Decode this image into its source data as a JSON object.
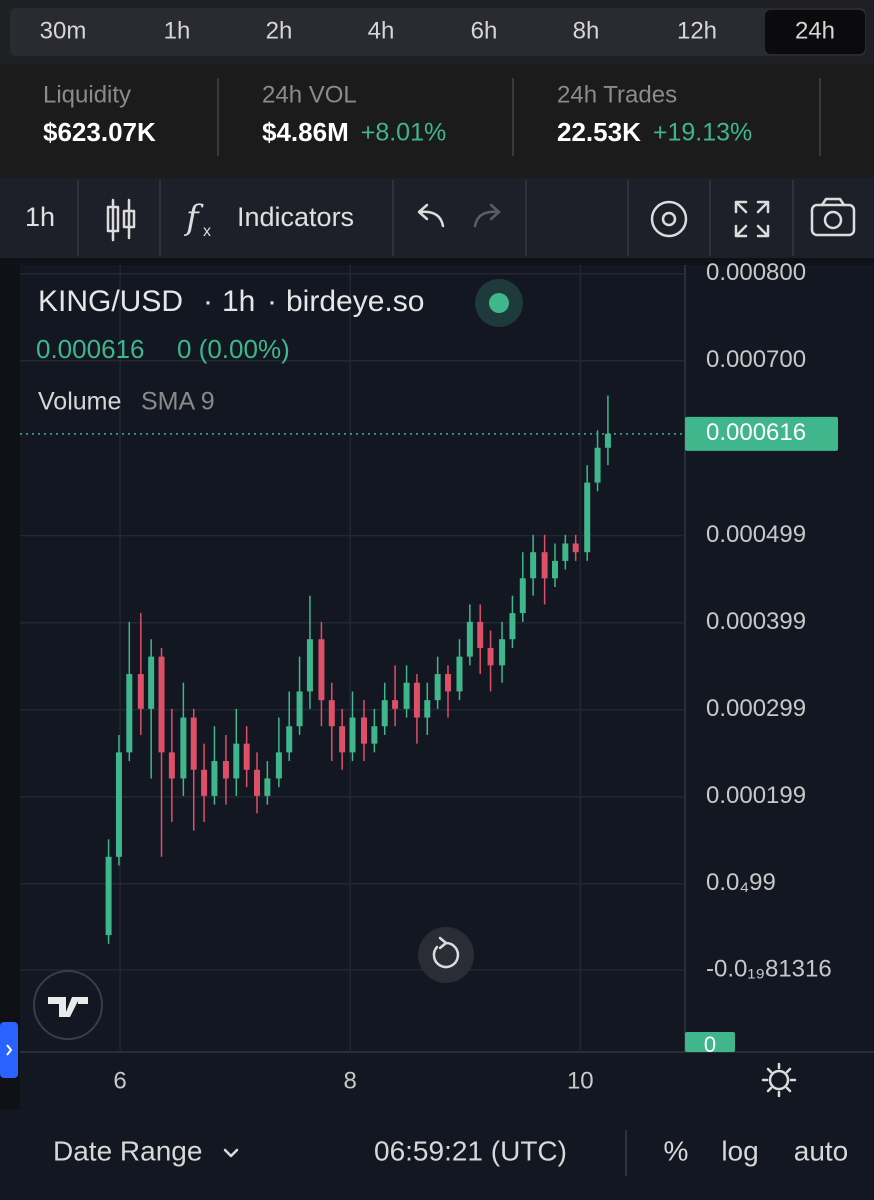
{
  "timeframes": [
    "30m",
    "1h",
    "2h",
    "4h",
    "6h",
    "8h",
    "12h",
    "24h"
  ],
  "active_timeframe": "24h",
  "stats": [
    {
      "label": "Liquidity",
      "value": "$623.07K"
    },
    {
      "label": "24h VOL",
      "value": "$4.86M",
      "change": "+8.01%"
    },
    {
      "label": "24h Trades",
      "value": "22.53K",
      "change": "+19.13%"
    }
  ],
  "toolbar": {
    "interval": "1h",
    "indicators": "Indicators"
  },
  "chart_data": {
    "type": "candlestick",
    "symbol": "KING/USD",
    "interval": "1h",
    "source": "birdeye.so",
    "last_price": 0.000616,
    "change": "0 (0.00%)",
    "indicator": "Volume",
    "indicator_params": "SMA 9",
    "up_color": "#3fb68b",
    "down_color": "#dc5068",
    "grid": true,
    "x": [
      5.9,
      5.99,
      6.08,
      6.18,
      6.27,
      6.36,
      6.45,
      6.55,
      6.64,
      6.73,
      6.82,
      6.92,
      7.01,
      7.1,
      7.19,
      7.28,
      7.38,
      7.47,
      7.56,
      7.65,
      7.75,
      7.84,
      7.93,
      8.02,
      8.12,
      8.21,
      8.3,
      8.39,
      8.49,
      8.58,
      8.67,
      8.76,
      8.85,
      8.95,
      9.04,
      9.13,
      9.22,
      9.32,
      9.41,
      9.5,
      9.59,
      9.69,
      9.78,
      9.87,
      9.96,
      10.06,
      10.15,
      10.24
    ],
    "open": [
      4e-05,
      0.00013,
      0.00025,
      0.00034,
      0.0003,
      0.00036,
      0.00025,
      0.00022,
      0.00029,
      0.00023,
      0.0002,
      0.00024,
      0.00022,
      0.00026,
      0.00023,
      0.0002,
      0.00022,
      0.00025,
      0.00028,
      0.00032,
      0.00038,
      0.00031,
      0.00028,
      0.00025,
      0.00029,
      0.00026,
      0.00028,
      0.00031,
      0.0003,
      0.00033,
      0.00029,
      0.00031,
      0.00034,
      0.00032,
      0.00036,
      0.0004,
      0.00037,
      0.00035,
      0.00038,
      0.00041,
      0.00045,
      0.00048,
      0.00045,
      0.00047,
      0.00049,
      0.00048,
      0.00056,
      0.0006
    ],
    "high": [
      0.00015,
      0.00027,
      0.0004,
      0.00041,
      0.00038,
      0.00037,
      0.0003,
      0.00033,
      0.0003,
      0.00026,
      0.00028,
      0.00027,
      0.0003,
      0.00028,
      0.00025,
      0.00024,
      0.00029,
      0.00032,
      0.00036,
      0.00043,
      0.0004,
      0.00033,
      0.0003,
      0.00032,
      0.00031,
      0.0003,
      0.00033,
      0.00035,
      0.00035,
      0.00034,
      0.00033,
      0.00036,
      0.00035,
      0.00038,
      0.00042,
      0.00042,
      0.00039,
      0.0004,
      0.00043,
      0.00048,
      0.0005,
      0.0005,
      0.00049,
      0.0005,
      0.0005,
      0.00058,
      0.00062,
      0.00066
    ],
    "low": [
      3e-05,
      0.00012,
      0.00024,
      0.00027,
      0.00022,
      0.00013,
      0.00017,
      0.0002,
      0.00016,
      0.00017,
      0.00019,
      0.00019,
      0.0002,
      0.00021,
      0.00018,
      0.00019,
      0.00021,
      0.00024,
      0.00027,
      0.0003,
      0.00028,
      0.00024,
      0.00023,
      0.00024,
      0.00024,
      0.00025,
      0.00027,
      0.00028,
      0.00029,
      0.00026,
      0.00027,
      0.0003,
      0.00029,
      0.00031,
      0.00035,
      0.00034,
      0.00032,
      0.00033,
      0.00037,
      0.0004,
      0.00043,
      0.00042,
      0.00044,
      0.00046,
      0.00047,
      0.00047,
      0.00055,
      0.00058
    ],
    "close": [
      0.00013,
      0.00025,
      0.00034,
      0.0003,
      0.00036,
      0.00025,
      0.00022,
      0.00029,
      0.00023,
      0.0002,
      0.00024,
      0.00022,
      0.00026,
      0.00023,
      0.0002,
      0.00022,
      0.00025,
      0.00028,
      0.00032,
      0.00038,
      0.00031,
      0.00028,
      0.00025,
      0.00029,
      0.00026,
      0.00028,
      0.00031,
      0.0003,
      0.00033,
      0.00029,
      0.00031,
      0.00034,
      0.00032,
      0.00036,
      0.0004,
      0.00037,
      0.00035,
      0.00038,
      0.00041,
      0.00045,
      0.00048,
      0.00045,
      0.00047,
      0.00049,
      0.00048,
      0.00056,
      0.0006,
      0.000616
    ],
    "xlim": [
      5.13,
      10.91
    ],
    "xticks": [
      6,
      8,
      10
    ],
    "ylim": [
      -9.43e-05,
      0.00081
    ],
    "yticks": [
      {
        "value": 0.0008,
        "label": "0.000800"
      },
      {
        "value": 0.0007,
        "label": "0.000700"
      },
      0.000499,
      0.000399,
      0.000299,
      0.000199,
      {
        "value": 9.9e-05,
        "label": "0.0₄99"
      },
      {
        "value": -8.1316e-20,
        "label": "-0.0₁₉81316"
      }
    ],
    "volume_axis_label": 0
  },
  "footer": {
    "date_range": "Date Range",
    "time": "06:59:21 (UTC)",
    "percent": "%",
    "log": "log",
    "auto": "auto"
  }
}
